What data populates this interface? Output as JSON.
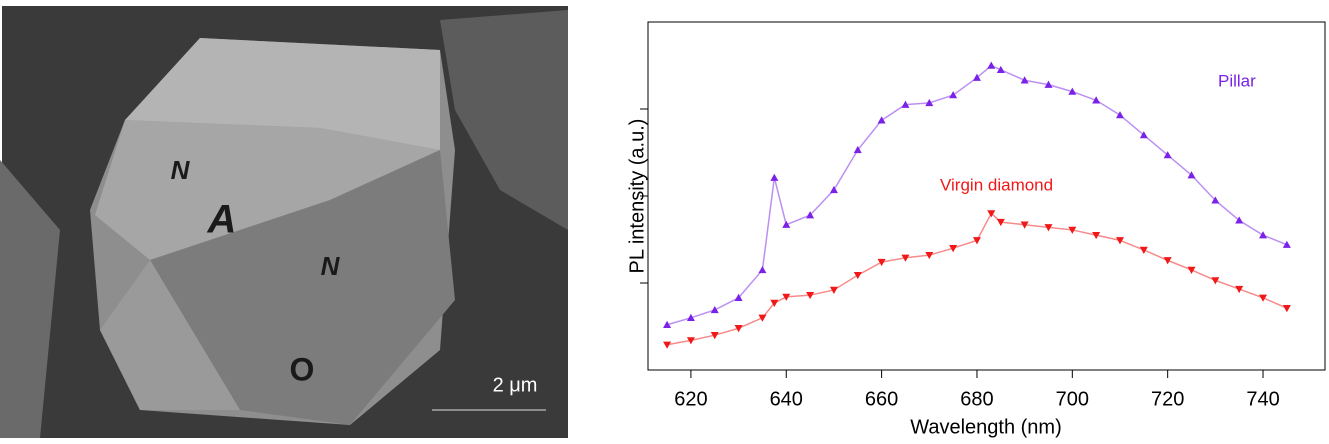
{
  "image": {
    "letters": [
      "N",
      "A",
      "N",
      "O"
    ],
    "scale_bar": "2 μm"
  },
  "chart_data": {
    "type": "scatter",
    "xlabel": "Wavelength (nm)",
    "ylabel": "PL intensity (a.u.)",
    "x": [
      615,
      620,
      625,
      630,
      635,
      637.5,
      640,
      645,
      650,
      655,
      660,
      665,
      670,
      675,
      680,
      683,
      685,
      690,
      695,
      700,
      705,
      710,
      715,
      720,
      725,
      730,
      735,
      740,
      745
    ],
    "series": [
      {
        "name": "Pillar",
        "color": "#7a22e8",
        "marker": "triangle-up",
        "values": [
          0.52,
          0.6,
          0.69,
          0.83,
          1.15,
          2.21,
          1.67,
          1.78,
          2.07,
          2.53,
          2.87,
          3.05,
          3.07,
          3.16,
          3.36,
          3.5,
          3.45,
          3.33,
          3.28,
          3.2,
          3.1,
          2.93,
          2.7,
          2.47,
          2.24,
          1.95,
          1.72,
          1.55,
          1.44
        ]
      },
      {
        "name": "Virgin diamond",
        "color": "#f01818",
        "marker": "triangle-down",
        "values": [
          0.29,
          0.34,
          0.4,
          0.48,
          0.6,
          0.77,
          0.84,
          0.86,
          0.92,
          1.09,
          1.24,
          1.29,
          1.32,
          1.4,
          1.49,
          1.8,
          1.7,
          1.67,
          1.64,
          1.61,
          1.55,
          1.49,
          1.38,
          1.26,
          1.15,
          1.03,
          0.93,
          0.83,
          0.71
        ]
      }
    ],
    "xlim": [
      611,
      753
    ],
    "xticks": [
      620,
      640,
      660,
      680,
      700,
      720,
      740
    ],
    "ylim": [
      0,
      4
    ],
    "yticks": [
      1,
      2,
      3
    ]
  }
}
